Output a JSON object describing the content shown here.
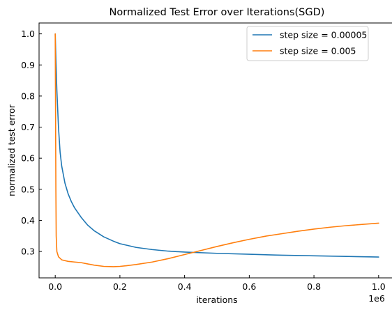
{
  "chart_data": {
    "type": "line",
    "title": "Normalized Test Error over Iterations(SGD)",
    "xlabel": "iterations",
    "ylabel": "normalized test error",
    "x_scale_label": "1e6",
    "xlim": [
      -0.05,
      1.05
    ],
    "ylim": [
      0.215,
      1.035
    ],
    "x_ticks": [
      0.0,
      0.2,
      0.4,
      0.6,
      0.8,
      1.0
    ],
    "x_tick_labels": [
      "0.0",
      "0.2",
      "0.4",
      "0.6",
      "0.8",
      "1.0"
    ],
    "y_ticks": [
      0.3,
      0.4,
      0.5,
      0.6,
      0.7,
      0.8,
      0.9,
      1.0
    ],
    "y_tick_labels": [
      "0.3",
      "0.4",
      "0.5",
      "0.6",
      "0.7",
      "0.8",
      "0.9",
      "1.0"
    ],
    "grid": false,
    "legend_position": "top-right",
    "series": [
      {
        "name": "step size = 0.00005",
        "color": "#1f77b4",
        "points": [
          [
            0.0,
            1.0
          ],
          [
            0.002,
            0.92
          ],
          [
            0.005,
            0.82
          ],
          [
            0.01,
            0.7
          ],
          [
            0.015,
            0.62
          ],
          [
            0.02,
            0.575
          ],
          [
            0.03,
            0.52
          ],
          [
            0.04,
            0.485
          ],
          [
            0.05,
            0.46
          ],
          [
            0.06,
            0.44
          ],
          [
            0.08,
            0.41
          ],
          [
            0.1,
            0.385
          ],
          [
            0.12,
            0.367
          ],
          [
            0.15,
            0.347
          ],
          [
            0.18,
            0.333
          ],
          [
            0.2,
            0.325
          ],
          [
            0.25,
            0.313
          ],
          [
            0.3,
            0.306
          ],
          [
            0.35,
            0.301
          ],
          [
            0.4,
            0.298
          ],
          [
            0.5,
            0.294
          ],
          [
            0.6,
            0.291
          ],
          [
            0.7,
            0.288
          ],
          [
            0.8,
            0.286
          ],
          [
            0.9,
            0.284
          ],
          [
            1.0,
            0.282
          ]
        ]
      },
      {
        "name": "step size = 0.005",
        "color": "#ff7f0e",
        "points": [
          [
            0.0,
            1.0
          ],
          [
            0.001,
            0.75
          ],
          [
            0.002,
            0.5
          ],
          [
            0.003,
            0.35
          ],
          [
            0.005,
            0.3
          ],
          [
            0.01,
            0.283
          ],
          [
            0.02,
            0.273
          ],
          [
            0.04,
            0.268
          ],
          [
            0.06,
            0.266
          ],
          [
            0.08,
            0.264
          ],
          [
            0.1,
            0.26
          ],
          [
            0.12,
            0.256
          ],
          [
            0.15,
            0.252
          ],
          [
            0.18,
            0.251
          ],
          [
            0.2,
            0.252
          ],
          [
            0.22,
            0.254
          ],
          [
            0.25,
            0.258
          ],
          [
            0.3,
            0.266
          ],
          [
            0.35,
            0.277
          ],
          [
            0.4,
            0.29
          ],
          [
            0.45,
            0.303
          ],
          [
            0.5,
            0.316
          ],
          [
            0.55,
            0.328
          ],
          [
            0.6,
            0.339
          ],
          [
            0.65,
            0.349
          ],
          [
            0.7,
            0.357
          ],
          [
            0.75,
            0.365
          ],
          [
            0.8,
            0.372
          ],
          [
            0.85,
            0.378
          ],
          [
            0.9,
            0.383
          ],
          [
            0.95,
            0.387
          ],
          [
            1.0,
            0.391
          ]
        ]
      }
    ]
  }
}
